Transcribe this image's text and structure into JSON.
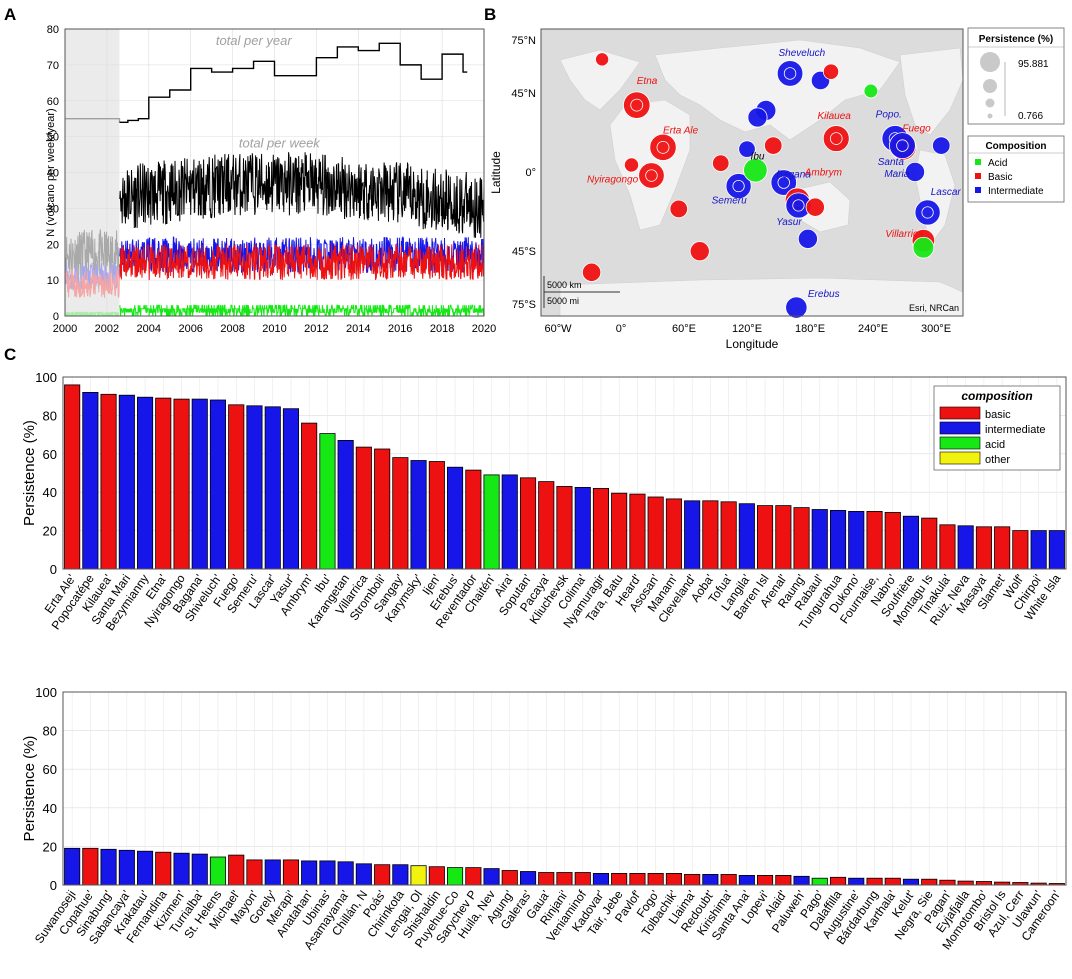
{
  "panel_labels": {
    "a": "A",
    "b": "B",
    "c": "C"
  },
  "colors": {
    "basic": "#ee1111",
    "intermediate": "#1616e8",
    "acid": "#16e816",
    "other": "#f2f20f",
    "black": "#000000",
    "gray": "#a0a0a0"
  },
  "chart_data": [
    {
      "id": "A",
      "type": "line",
      "ylabel": "N (volcano per week/year)",
      "xlim": [
        2000,
        2020
      ],
      "ylim": [
        0,
        80
      ],
      "xticks": [
        2000,
        2002,
        2004,
        2006,
        2008,
        2010,
        2012,
        2014,
        2016,
        2018,
        2020
      ],
      "yticks": [
        0,
        10,
        20,
        30,
        40,
        50,
        60,
        70,
        80
      ],
      "annotations": {
        "per_year": "total per year",
        "per_week": "total per week"
      },
      "shaded_region": [
        2000,
        2002.6
      ],
      "yearly_totals": {
        "x": [
          2000,
          2002.6,
          2003,
          2003.5,
          2004,
          2005,
          2006,
          2007,
          2008,
          2009,
          2010,
          2011,
          2012,
          2013,
          2014,
          2015,
          2016,
          2017,
          2018,
          2019
        ],
        "values": [
          55,
          54,
          54.5,
          55,
          61,
          63,
          69,
          68,
          69,
          71,
          67,
          67,
          72,
          75,
          74,
          76,
          70,
          66,
          73,
          68
        ]
      },
      "weekly_series_levels": [
        {
          "name": "total",
          "mean_before_2002_6": 17,
          "mean_after": 33
        },
        {
          "name": "intermediate",
          "mean_before_2002_6": 11,
          "mean_after": 17
        },
        {
          "name": "basic",
          "mean_before_2002_6": 9,
          "mean_after": 15
        },
        {
          "name": "acid",
          "mean_before_2002_6": 0.5,
          "mean_after": 1.5
        }
      ]
    },
    {
      "id": "B",
      "type": "scatter",
      "xlabel": "Longitude",
      "ylabel": "Latitude",
      "xticks": [
        "60°W",
        "0°",
        "60°E",
        "120°E",
        "180°E",
        "240°E",
        "300°E"
      ],
      "yticks": [
        "75°N",
        "45°N",
        "0°",
        "45°S",
        "75°S"
      ],
      "credit": "Esri, NRCan",
      "scalebar": [
        "5000 km",
        "5000 mi"
      ],
      "legend": {
        "persistence_title": "Persistence (%)",
        "persistence_max": "95.881",
        "persistence_min": "0.766",
        "composition_title": "Composition",
        "entries": [
          {
            "label": "Acid",
            "color": "#16e816"
          },
          {
            "label": "Basic",
            "color": "#ee1111"
          },
          {
            "label": "Intermediate",
            "color": "#1616e8"
          }
        ]
      },
      "points": [
        {
          "lon": 15,
          "lat": 38,
          "comp": "basic",
          "p": 96,
          "label": "Etna"
        },
        {
          "lon": 40,
          "lat": 14,
          "comp": "basic",
          "p": 95,
          "label": "Erta Ale"
        },
        {
          "lon": 29,
          "lat": -2,
          "comp": "basic",
          "p": 88,
          "label": "Nyiragongo"
        },
        {
          "lon": 161,
          "lat": 56,
          "comp": "intermediate",
          "p": 88,
          "label": "Sheveluch"
        },
        {
          "lon": 205,
          "lat": 19,
          "comp": "basic",
          "p": 91,
          "label": "Kilauea"
        },
        {
          "lon": 155,
          "lat": -6,
          "comp": "intermediate",
          "p": 88,
          "label": "Bagana"
        },
        {
          "lon": 112,
          "lat": -8,
          "comp": "intermediate",
          "p": 84,
          "label": "Semeru"
        },
        {
          "lon": 128,
          "lat": 1,
          "comp": "acid",
          "p": 70,
          "label": "Ibu"
        },
        {
          "lon": 168,
          "lat": -16,
          "comp": "basic",
          "p": 76,
          "label": "Ambrym"
        },
        {
          "lon": 169,
          "lat": -19,
          "comp": "intermediate",
          "p": 83,
          "label": "Yasur"
        },
        {
          "lon": 261,
          "lat": 19,
          "comp": "intermediate",
          "p": 92,
          "label": "Popo."
        },
        {
          "lon": 269,
          "lat": 14,
          "comp": "basic",
          "p": 85,
          "label": "Fuego"
        },
        {
          "lon": 268,
          "lat": 15,
          "comp": "intermediate",
          "p": 90,
          "label": "Santa Maria"
        },
        {
          "lon": 292,
          "lat": -23,
          "comp": "intermediate",
          "p": 84,
          "label": "Lascar"
        },
        {
          "lon": 288,
          "lat": -39,
          "comp": "basic",
          "p": 63,
          "label": "Villarrica"
        },
        {
          "lon": 167,
          "lat": -77,
          "comp": "intermediate",
          "p": 54,
          "label": "Erebus"
        },
        {
          "lon": 288,
          "lat": -43,
          "comp": "acid",
          "p": 49,
          "label": ""
        },
        {
          "lon": 238,
          "lat": 46,
          "comp": "acid",
          "p": 14,
          "label": ""
        },
        {
          "lon": 75,
          "lat": -45,
          "comp": "basic",
          "p": 40,
          "label": ""
        },
        {
          "lon": -28,
          "lat": -57,
          "comp": "basic",
          "p": 35,
          "label": ""
        },
        {
          "lon": -18,
          "lat": 64,
          "comp": "basic",
          "p": 12,
          "label": ""
        },
        {
          "lon": 138,
          "lat": 35,
          "comp": "intermediate",
          "p": 45,
          "label": ""
        },
        {
          "lon": 130,
          "lat": 31,
          "comp": "intermediate",
          "p": 40,
          "label": ""
        },
        {
          "lon": 185,
          "lat": -20,
          "comp": "basic",
          "p": 35,
          "label": ""
        },
        {
          "lon": 178,
          "lat": -38,
          "comp": "intermediate",
          "p": 40,
          "label": ""
        },
        {
          "lon": 55,
          "lat": -21,
          "comp": "basic",
          "p": 30,
          "label": ""
        },
        {
          "lon": 95,
          "lat": 5,
          "comp": "basic",
          "p": 25,
          "label": ""
        },
        {
          "lon": 305,
          "lat": 15,
          "comp": "intermediate",
          "p": 30,
          "label": ""
        },
        {
          "lon": 190,
          "lat": 52,
          "comp": "intermediate",
          "p": 35,
          "label": ""
        },
        {
          "lon": 200,
          "lat": 57,
          "comp": "basic",
          "p": 20,
          "label": ""
        },
        {
          "lon": 280,
          "lat": 0,
          "comp": "intermediate",
          "p": 40,
          "label": ""
        },
        {
          "lon": 145,
          "lat": 15,
          "comp": "basic",
          "p": 30,
          "label": ""
        },
        {
          "lon": 120,
          "lat": 13,
          "comp": "intermediate",
          "p": 25,
          "label": ""
        },
        {
          "lon": 10,
          "lat": 4,
          "comp": "basic",
          "p": 15,
          "label": ""
        }
      ]
    },
    {
      "id": "C1",
      "type": "bar",
      "ylabel": "Persistence (%)",
      "ylim": [
        0,
        100
      ],
      "yticks": [
        0,
        20,
        40,
        60,
        80,
        100
      ],
      "legend": {
        "title": "composition",
        "entries": [
          {
            "label": "basic",
            "key": "basic"
          },
          {
            "label": "intermediate",
            "key": "intermediate"
          },
          {
            "label": "acid",
            "key": "acid"
          },
          {
            "label": "other",
            "key": "other"
          }
        ]
      },
      "bars": [
        {
          "name": "Erta Ale'",
          "v": 95.9,
          "c": "basic"
        },
        {
          "name": "Popocatépe",
          "v": 92,
          "c": "intermediate"
        },
        {
          "name": "Kilauea'",
          "v": 91,
          "c": "basic"
        },
        {
          "name": "Santa Mari",
          "v": 90.5,
          "c": "intermediate"
        },
        {
          "name": "Bezymianny",
          "v": 89.5,
          "c": "intermediate"
        },
        {
          "name": "Etna'",
          "v": 89,
          "c": "basic"
        },
        {
          "name": "Nyiragongo",
          "v": 88.5,
          "c": "basic"
        },
        {
          "name": "Bagana'",
          "v": 88.5,
          "c": "intermediate"
        },
        {
          "name": "Shiveluch'",
          "v": 88,
          "c": "intermediate"
        },
        {
          "name": "Fuego'",
          "v": 85.5,
          "c": "basic"
        },
        {
          "name": "Semeru'",
          "v": 85,
          "c": "intermediate"
        },
        {
          "name": "Lascar'",
          "v": 84.5,
          "c": "intermediate"
        },
        {
          "name": "Yasur'",
          "v": 83.5,
          "c": "intermediate"
        },
        {
          "name": "Ambrym'",
          "v": 76,
          "c": "basic"
        },
        {
          "name": "Ibu'",
          "v": 70.5,
          "c": "acid"
        },
        {
          "name": "Karangetan",
          "v": 67,
          "c": "intermediate"
        },
        {
          "name": "Villarrica",
          "v": 63.5,
          "c": "basic"
        },
        {
          "name": "Stromboli'",
          "v": 62.5,
          "c": "basic"
        },
        {
          "name": "Sangay'",
          "v": 58,
          "c": "basic"
        },
        {
          "name": "Karymsky'",
          "v": 56.5,
          "c": "intermediate"
        },
        {
          "name": "Ijen'",
          "v": 56,
          "c": "basic"
        },
        {
          "name": "Erebus'",
          "v": 53,
          "c": "intermediate"
        },
        {
          "name": "Reventador",
          "v": 51.5,
          "c": "basic"
        },
        {
          "name": "Chaitén'",
          "v": 49,
          "c": "acid"
        },
        {
          "name": "Aira'",
          "v": 49,
          "c": "intermediate"
        },
        {
          "name": "Soputan'",
          "v": 47.5,
          "c": "basic"
        },
        {
          "name": "Pacaya'",
          "v": 45.5,
          "c": "basic"
        },
        {
          "name": "Kliuchevsk",
          "v": 43,
          "c": "basic"
        },
        {
          "name": "Colima'",
          "v": 42.5,
          "c": "intermediate"
        },
        {
          "name": "Nyamuragir",
          "v": 42,
          "c": "basic"
        },
        {
          "name": "Tara, Batu",
          "v": 39.5,
          "c": "basic"
        },
        {
          "name": "Heard'",
          "v": 39,
          "c": "basic"
        },
        {
          "name": "Asosan'",
          "v": 37.5,
          "c": "basic"
        },
        {
          "name": "Manam'",
          "v": 36.5,
          "c": "basic"
        },
        {
          "name": "Cleveland'",
          "v": 35.5,
          "c": "intermediate"
        },
        {
          "name": "Aoba'",
          "v": 35.5,
          "c": "basic"
        },
        {
          "name": "Tofua'",
          "v": 35,
          "c": "basic"
        },
        {
          "name": "Langila'",
          "v": 34,
          "c": "intermediate"
        },
        {
          "name": "Barren Isl",
          "v": 33,
          "c": "basic"
        },
        {
          "name": "Arenal'",
          "v": 33,
          "c": "basic"
        },
        {
          "name": "Raung'",
          "v": 32,
          "c": "basic"
        },
        {
          "name": "Rabaul'",
          "v": 31,
          "c": "intermediate"
        },
        {
          "name": "Tungurahua",
          "v": 30.5,
          "c": "intermediate"
        },
        {
          "name": "Dukono'",
          "v": 30,
          "c": "intermediate"
        },
        {
          "name": "Fournaise,",
          "v": 30,
          "c": "basic"
        },
        {
          "name": "Nabro'",
          "v": 29.5,
          "c": "basic"
        },
        {
          "name": "Soufrière",
          "v": 27.5,
          "c": "intermediate"
        },
        {
          "name": "Montagu Is",
          "v": 26.5,
          "c": "basic"
        },
        {
          "name": "Tinakula'",
          "v": 23,
          "c": "basic"
        },
        {
          "name": "Ruiz, Neva",
          "v": 22.5,
          "c": "intermediate"
        },
        {
          "name": "Masaya'",
          "v": 22,
          "c": "basic"
        },
        {
          "name": "Slamet'",
          "v": 22,
          "c": "basic"
        },
        {
          "name": "Wolf'",
          "v": 20,
          "c": "basic"
        },
        {
          "name": "Chirpoi'",
          "v": 20,
          "c": "intermediate"
        },
        {
          "name": "White Isla",
          "v": 20,
          "c": "intermediate"
        }
      ]
    },
    {
      "id": "C2",
      "type": "bar",
      "ylabel": "Persistence (%)",
      "ylim": [
        0,
        100
      ],
      "yticks": [
        0,
        20,
        40,
        60,
        80,
        100
      ],
      "bars": [
        {
          "name": "Suwanoseji",
          "v": 19,
          "c": "intermediate"
        },
        {
          "name": "Copahue'",
          "v": 19,
          "c": "basic"
        },
        {
          "name": "Sinabung'",
          "v": 18.5,
          "c": "intermediate"
        },
        {
          "name": "Sabancaya'",
          "v": 18,
          "c": "intermediate"
        },
        {
          "name": "Krakatau'",
          "v": 17.5,
          "c": "intermediate"
        },
        {
          "name": "Fernandina",
          "v": 17,
          "c": "basic"
        },
        {
          "name": "Kizimen'",
          "v": 16.5,
          "c": "intermediate"
        },
        {
          "name": "Turrialba'",
          "v": 16,
          "c": "intermediate"
        },
        {
          "name": "St. Helens",
          "v": 14.5,
          "c": "acid"
        },
        {
          "name": "Michael'",
          "v": 15.5,
          "c": "basic"
        },
        {
          "name": "Mayon'",
          "v": 13,
          "c": "basic"
        },
        {
          "name": "Gorely'",
          "v": 13,
          "c": "intermediate"
        },
        {
          "name": "Merapi'",
          "v": 13,
          "c": "basic"
        },
        {
          "name": "Anatahan'",
          "v": 12.5,
          "c": "intermediate"
        },
        {
          "name": "Ubinas'",
          "v": 12.5,
          "c": "intermediate"
        },
        {
          "name": "Asamayama'",
          "v": 12,
          "c": "intermediate"
        },
        {
          "name": "Chillán, N",
          "v": 11,
          "c": "intermediate"
        },
        {
          "name": "Poás'",
          "v": 10.5,
          "c": "basic"
        },
        {
          "name": "Chirinkota",
          "v": 10.5,
          "c": "intermediate"
        },
        {
          "name": "Lengai, Ol",
          "v": 10,
          "c": "other"
        },
        {
          "name": "Shishaldin",
          "v": 9.5,
          "c": "basic"
        },
        {
          "name": "Puyehue-Co",
          "v": 9,
          "c": "acid"
        },
        {
          "name": "Sarychev P",
          "v": 9,
          "c": "basic"
        },
        {
          "name": "Huila, Nev",
          "v": 8.5,
          "c": "intermediate"
        },
        {
          "name": "Agung'",
          "v": 7.5,
          "c": "basic"
        },
        {
          "name": "Galeras'",
          "v": 7,
          "c": "intermediate"
        },
        {
          "name": "Gaua'",
          "v": 6.5,
          "c": "basic"
        },
        {
          "name": "Rinjani'",
          "v": 6.5,
          "c": "basic"
        },
        {
          "name": "Veniaminof",
          "v": 6.5,
          "c": "basic"
        },
        {
          "name": "Kadovar'",
          "v": 6,
          "c": "intermediate"
        },
        {
          "name": "Tair, Jebe",
          "v": 6,
          "c": "basic"
        },
        {
          "name": "Pavlof'",
          "v": 6,
          "c": "basic"
        },
        {
          "name": "Fogo'",
          "v": 6,
          "c": "basic"
        },
        {
          "name": "Tolbachik'",
          "v": 6,
          "c": "basic"
        },
        {
          "name": "Llaima'",
          "v": 5.5,
          "c": "basic"
        },
        {
          "name": "Redoubt'",
          "v": 5.5,
          "c": "intermediate"
        },
        {
          "name": "Kirishima'",
          "v": 5.5,
          "c": "basic"
        },
        {
          "name": "Santa Ana'",
          "v": 5,
          "c": "intermediate"
        },
        {
          "name": "Lopevi'",
          "v": 5,
          "c": "basic"
        },
        {
          "name": "Alaid'",
          "v": 5,
          "c": "basic"
        },
        {
          "name": "Paluweh'",
          "v": 4.5,
          "c": "intermediate"
        },
        {
          "name": "Pago'",
          "v": 3.5,
          "c": "acid"
        },
        {
          "name": "Dalaffilla",
          "v": 4,
          "c": "basic"
        },
        {
          "name": "Augustine'",
          "v": 3.5,
          "c": "intermediate"
        },
        {
          "name": "Bárdarbung",
          "v": 3.5,
          "c": "basic"
        },
        {
          "name": "Karthala'",
          "v": 3.5,
          "c": "basic"
        },
        {
          "name": "Kelut'",
          "v": 3,
          "c": "intermediate"
        },
        {
          "name": "Negra, Sie",
          "v": 3,
          "c": "basic"
        },
        {
          "name": "Pagan'",
          "v": 2.5,
          "c": "basic"
        },
        {
          "name": "Eyjafjalla",
          "v": 2,
          "c": "basic"
        },
        {
          "name": "Momotombo'",
          "v": 1.8,
          "c": "basic"
        },
        {
          "name": "Bristol Is",
          "v": 1.5,
          "c": "basic"
        },
        {
          "name": "Azul, Cerr",
          "v": 1.3,
          "c": "basic"
        },
        {
          "name": "Ulawun'",
          "v": 1,
          "c": "basic"
        },
        {
          "name": "Cameroon'",
          "v": 0.8,
          "c": "basic"
        }
      ]
    }
  ]
}
